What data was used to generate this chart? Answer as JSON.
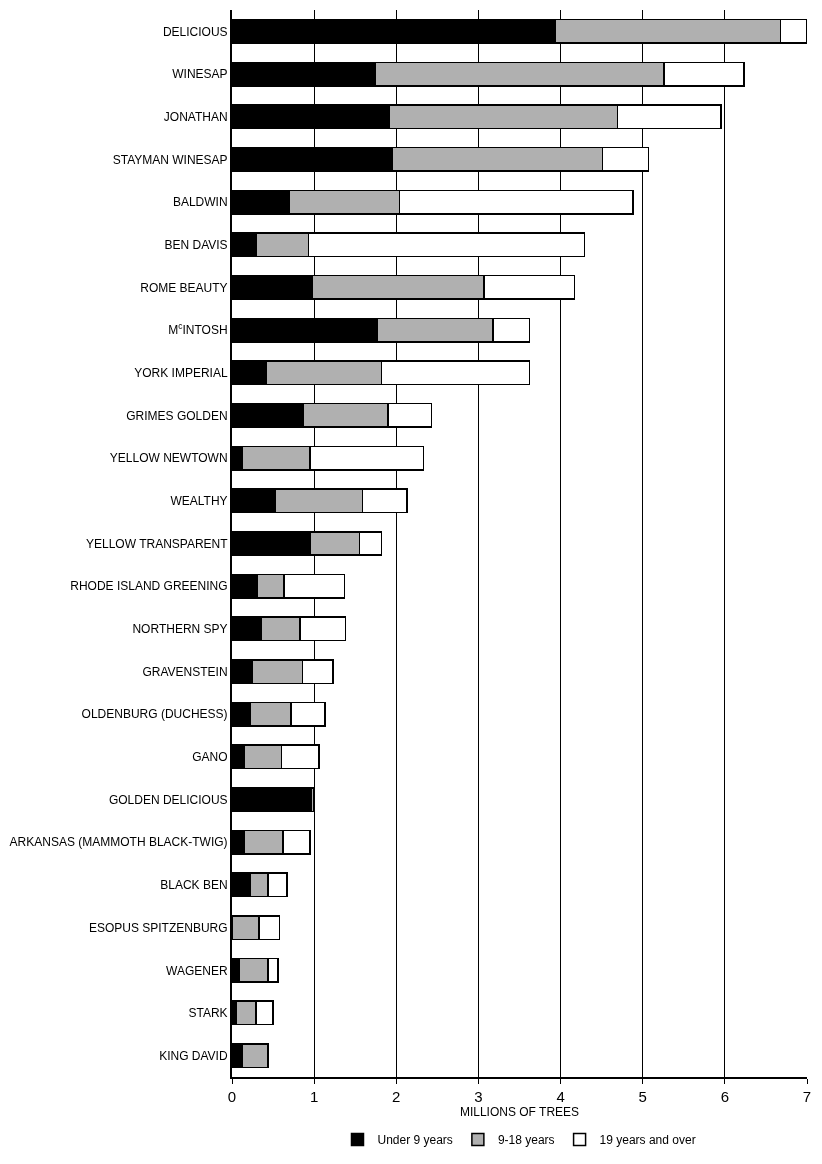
{
  "chart_data": {
    "type": "bar",
    "orientation": "horizontal",
    "stacked": true,
    "xlabel": "MILLIONS OF TREES",
    "categories": [
      "DELICIOUS",
      "WINESAP",
      "JONATHAN",
      "STAYMAN WINESAP",
      "BALDWIN",
      "BEN DAVIS",
      "ROME BEAUTY",
      "M$^{c}$INTOSH",
      "YORK IMPERIAL",
      "GRIMES GOLDEN",
      "YELLOW NEWTOWN",
      "WEALTHY",
      "YELLOW TRANSPARENT",
      "RHODE ISLAND GREENING",
      "NORTHERN SPY",
      "GRAVENSTEIN",
      "OLDENBURG (DUCHESS)",
      "GANO",
      "GOLDEN DELICIOUS",
      "ARKANSAS (MAMMOTH BLACK-TWIG)",
      "BLACK BEN",
      "ESOPUS SPITZENBURG",
      "WAGENER",
      "STARK",
      "KING DAVID"
    ],
    "series": [
      {
        "name": "Under 9 years",
        "color": "#000000",
        "values": [
          3.94,
          1.74,
          1.92,
          1.95,
          0.7,
          0.29,
          0.98,
          1.77,
          0.42,
          0.87,
          0.12,
          0.53,
          0.95,
          0.31,
          0.35,
          0.25,
          0.22,
          0.15,
          0.96,
          0.15,
          0.22,
          null,
          0.09,
          0.05,
          0.12
        ]
      },
      {
        "name": "9-18 years",
        "color": "#b0b0b0",
        "values": [
          2.74,
          3.52,
          2.77,
          2.56,
          1.34,
          0.64,
          2.09,
          1.41,
          1.4,
          1.03,
          0.83,
          1.06,
          0.6,
          0.32,
          0.48,
          0.61,
          0.5,
          0.45,
          0.03,
          0.47,
          0.22,
          0.33,
          0.35,
          0.24,
          0.32
        ]
      },
      {
        "name": "19 years and over",
        "color": "#ffffff",
        "values": [
          0.32,
          0.97,
          1.26,
          0.56,
          2.84,
          3.36,
          1.1,
          0.44,
          1.8,
          0.53,
          1.38,
          0.54,
          0.27,
          0.74,
          0.55,
          0.37,
          0.41,
          0.46,
          null,
          0.33,
          0.23,
          0.25,
          0.12,
          0.21,
          null
        ]
      }
    ],
    "xlim": [
      0,
      7
    ],
    "xticks": [
      0,
      1,
      2,
      3,
      4,
      5,
      6,
      7
    ],
    "grid": "x",
    "legend": "bottom"
  }
}
